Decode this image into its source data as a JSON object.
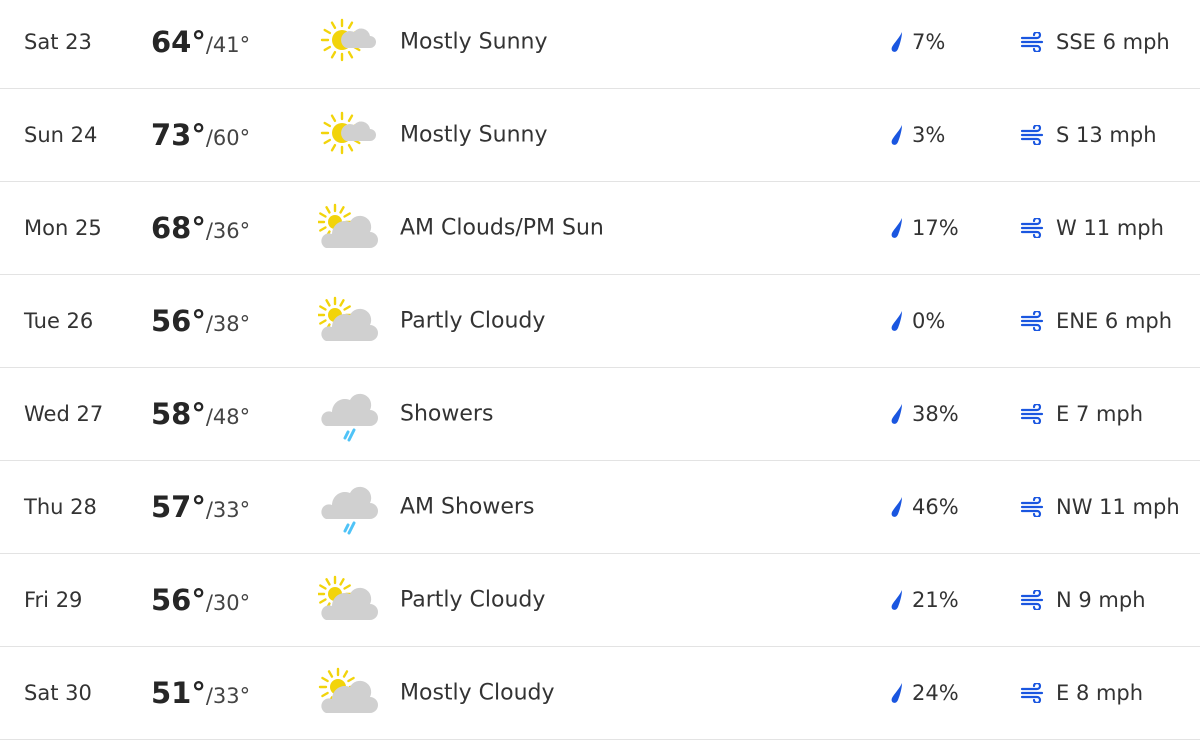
{
  "colors": {
    "accent": "#1a56e0",
    "sun": "#f2d40b",
    "cloud": "#d0d0d0",
    "rain": "#4fc3f7"
  },
  "forecast": [
    {
      "day": "Sat 23",
      "high": "64°",
      "low": "/41°",
      "icon": "mostly-sunny-icon",
      "condition": "Mostly Sunny",
      "precip": "7%",
      "wind": "SSE 6 mph"
    },
    {
      "day": "Sun 24",
      "high": "73°",
      "low": "/60°",
      "icon": "mostly-sunny-icon",
      "condition": "Mostly Sunny",
      "precip": "3%",
      "wind": "S 13 mph"
    },
    {
      "day": "Mon 25",
      "high": "68°",
      "low": "/36°",
      "icon": "partly-cloudy-icon",
      "condition": "AM Clouds/PM Sun",
      "precip": "17%",
      "wind": "W 11 mph"
    },
    {
      "day": "Tue 26",
      "high": "56°",
      "low": "/38°",
      "icon": "partly-cloudy-icon",
      "condition": "Partly Cloudy",
      "precip": "0%",
      "wind": "ENE 6 mph"
    },
    {
      "day": "Wed 27",
      "high": "58°",
      "low": "/48°",
      "icon": "showers-icon",
      "condition": "Showers",
      "precip": "38%",
      "wind": "E 7 mph"
    },
    {
      "day": "Thu 28",
      "high": "57°",
      "low": "/33°",
      "icon": "showers-icon",
      "condition": "AM Showers",
      "precip": "46%",
      "wind": "NW 11 mph"
    },
    {
      "day": "Fri 29",
      "high": "56°",
      "low": "/30°",
      "icon": "partly-cloudy-icon",
      "condition": "Partly Cloudy",
      "precip": "21%",
      "wind": "N 9 mph"
    },
    {
      "day": "Sat 30",
      "high": "51°",
      "low": "/33°",
      "icon": "mostly-cloudy-icon",
      "condition": "Mostly Cloudy",
      "precip": "24%",
      "wind": "E 8 mph"
    }
  ]
}
